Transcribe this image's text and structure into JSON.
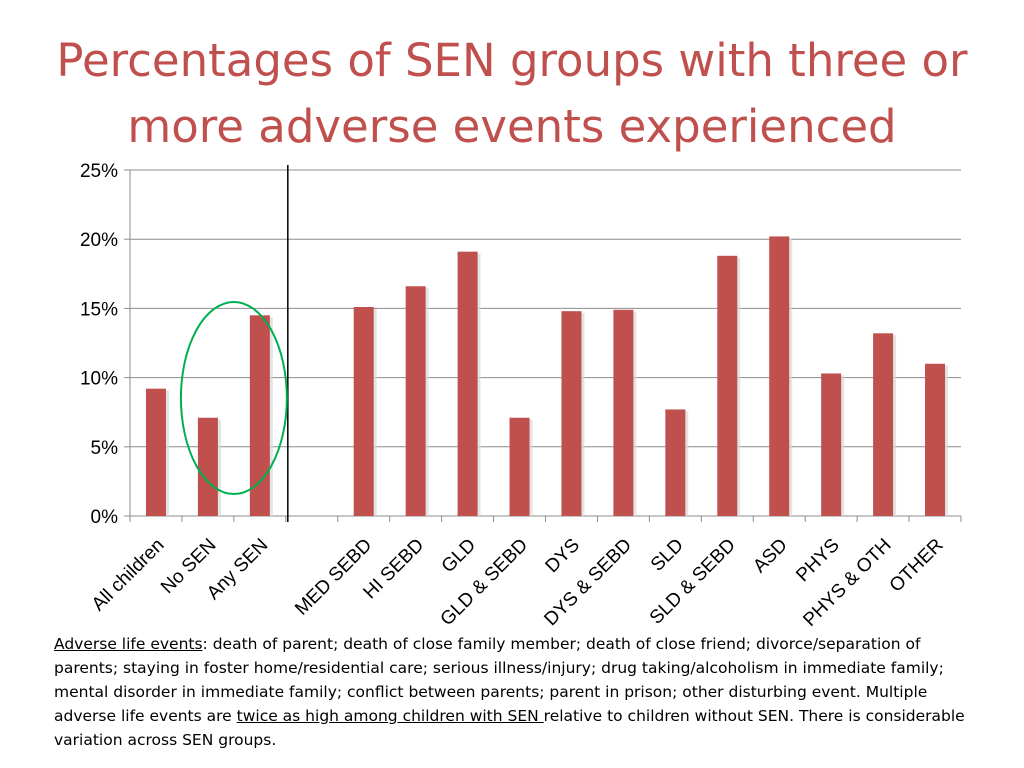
{
  "slide": {
    "title": "Percentages of SEN groups with three or more adverse events experienced"
  },
  "chart_data": {
    "type": "bar",
    "categories": [
      "All children",
      "No SEN",
      "Any SEN",
      "MED SEBD",
      "HI SEBD",
      "GLD",
      "GLD & SEBD",
      "DYS",
      "DYS & SEBD",
      "SLD",
      "SLD & SEBD",
      "ASD",
      "PHYS",
      "PHYS & OTH",
      "OTHER"
    ],
    "gap_after_index": 2,
    "values": [
      9.2,
      7.1,
      14.5,
      15.1,
      16.6,
      19.1,
      7.1,
      14.8,
      14.9,
      7.7,
      18.8,
      20.2,
      10.3,
      13.2,
      11.0
    ],
    "ylim": [
      0,
      25
    ],
    "yticks": [
      0,
      5,
      10,
      15,
      20,
      25
    ],
    "ytick_labels": [
      "0%",
      "5%",
      "10%",
      "15%",
      "20%",
      "25%"
    ],
    "bar_color": "#c0504d",
    "highlight_circle_color": "#00b050",
    "highlighted_categories": [
      "No SEN",
      "Any SEN"
    ],
    "grid": true,
    "xlabel": "",
    "ylabel": ""
  },
  "footnote": {
    "label": "Adverse life events",
    "events_text": ": death of parent; death of close family member; death of close friend; divorce/separation of parents; staying in foster home/residential care; serious illness/injury; drug taking/alcoholism in immediate family; mental disorder in immediate family; conflict between parents; parent in prison; other disturbing event.",
    "sentence_start": " Multiple adverse life events are ",
    "emphasis": "twice as high among children with SEN ",
    "sentence_end": "relative to children without SEN. There is considerable variation across SEN groups."
  }
}
